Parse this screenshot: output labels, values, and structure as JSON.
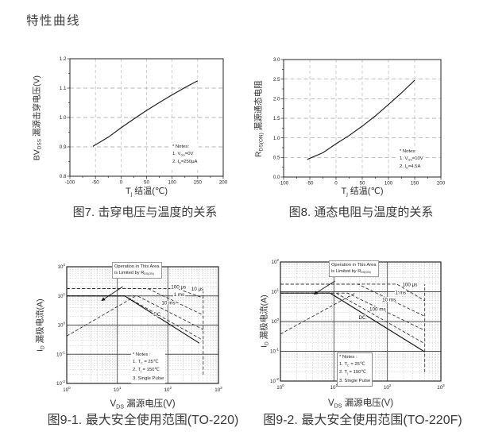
{
  "page": {
    "title": "特性曲线"
  },
  "colors": {
    "ink": "#1a1a1a",
    "grid_minor": "#b5b5b5",
    "grid_major": "#555555",
    "text": "#3a3a3a"
  },
  "chart_data": [
    {
      "type": "line",
      "caption": "图7. 击穿电压与温度的关系",
      "xlabel": "T_{j} 结温(℃)",
      "ylabel": "BV_{DSS} 漏源击穿电压(V)",
      "xlim": [
        -100,
        200
      ],
      "ylim": [
        0.8,
        1.2
      ],
      "xticks": [
        -100,
        -50,
        0,
        50,
        100,
        150,
        200
      ],
      "yticks": [
        "0.8",
        "0.9",
        "1.0",
        "1.1",
        "1.2"
      ],
      "grid": "dashed",
      "legend_position": "none",
      "notes": [
        "* Notes:",
        "1. V_{GS}=0V",
        "2. I_{D}=250μA"
      ],
      "series": [
        {
          "name": "BVDSS-vs-Tj",
          "style": "solid",
          "x": [
            -55,
            -25,
            0,
            25,
            50,
            75,
            100,
            125,
            150
          ],
          "y": [
            0.902,
            0.933,
            0.965,
            0.995,
            1.024,
            1.051,
            1.077,
            1.102,
            1.125
          ]
        }
      ]
    },
    {
      "type": "line",
      "caption": "图8. 通态电阻与温度的关系",
      "xlabel": "T_{j} 结温(℃)",
      "ylabel": "R_{DS(ON)} 漏源通态电阻",
      "xlim": [
        -100,
        200
      ],
      "ylim": [
        0.0,
        3.0
      ],
      "xticks": [
        -100,
        -50,
        0,
        50,
        100,
        150,
        200
      ],
      "yticks": [
        "0.0",
        "0.5",
        "1.0",
        "1.5",
        "2.0",
        "2.5",
        "3.0"
      ],
      "grid": "dashed",
      "legend_position": "none",
      "notes": [
        "* Notes:",
        "1. V_{GS}=10V",
        "2. I_{D}=4.5A"
      ],
      "series": [
        {
          "name": "RDSON-vs-Tj",
          "style": "solid",
          "x": [
            -55,
            -25,
            0,
            25,
            50,
            75,
            100,
            125,
            150
          ],
          "y": [
            0.45,
            0.62,
            0.85,
            1.06,
            1.3,
            1.56,
            1.85,
            2.15,
            2.47
          ]
        }
      ]
    },
    {
      "type": "loglog",
      "caption": "图9-1. 最大安全使用范围(TO-220)",
      "xlabel": "V_{DS} 漏源电压(V)",
      "ylabel": "I_{D} 漏极电流(A)",
      "xlim": [
        1,
        1000
      ],
      "ylim": [
        0.01,
        100
      ],
      "xticks": [
        "10^{0}",
        "10^{1}",
        "10^{2}",
        "10^{3}"
      ],
      "yticks": [
        "10^{-2}",
        "10^{-1}",
        "10^{0}",
        "10^{1}",
        "10^{2}"
      ],
      "annotation": [
        "Operation in This Area",
        "is Limited by R_{DS(ON)}"
      ],
      "notes": [
        "* Notes :",
        "1. T_{C} = 25℃",
        "2. T_{j} = 150℃",
        "3. Single Pulse"
      ],
      "series": [
        {
          "name": "rdson-limit",
          "style": "dashed",
          "points": [
            [
              1,
              0.42
            ],
            [
              22,
              9.5
            ]
          ]
        },
        {
          "name": "10us",
          "label": "10 μs",
          "style": "dashed",
          "points": [
            [
              1,
              18
            ],
            [
              150,
              18
            ],
            [
              500,
              8.5
            ]
          ],
          "label_at": [
            290,
            14
          ]
        },
        {
          "name": "100us",
          "label": "100 μs",
          "style": "dashed",
          "points": [
            [
              1,
              18
            ],
            [
              40,
              18
            ],
            [
              500,
              2.2
            ]
          ],
          "label_at": [
            115,
            16
          ]
        },
        {
          "name": "1ms",
          "label": "1 ms",
          "style": "dashed",
          "points": [
            [
              1,
              10
            ],
            [
              25,
              10
            ],
            [
              500,
              0.7
            ]
          ],
          "label_at": [
            130,
            9
          ]
        },
        {
          "name": "10ms",
          "label": "10 ms",
          "style": "dashed",
          "points": [
            [
              1,
              10
            ],
            [
              14,
              10
            ],
            [
              500,
              0.3
            ]
          ],
          "label_at": [
            75,
            4.6
          ]
        },
        {
          "name": "DC",
          "label": "DC",
          "style": "solid",
          "points": [
            [
              1,
              10
            ],
            [
              14,
              10
            ],
            [
              420,
              0.24
            ]
          ],
          "label_at": [
            52,
            1.9
          ]
        },
        {
          "name": "bvdss-500v-line",
          "style": "dashed",
          "points": [
            [
              500,
              0.02
            ],
            [
              500,
              18
            ]
          ]
        }
      ]
    },
    {
      "type": "loglog",
      "caption": "图9-2. 最大安全使用范围(TO-220F)",
      "xlabel": "V_{DS} 漏源电压(V)",
      "ylabel": "I_{D} 漏极电流(A)",
      "xlim": [
        1,
        1000
      ],
      "ylim": [
        0.01,
        100
      ],
      "xticks": [
        "10^{0}",
        "10^{1}",
        "10^{2}",
        "10^{3}"
      ],
      "yticks": [
        "10^{-2}",
        "10^{-1}",
        "10^{0}",
        "10^{1}",
        "10^{2}"
      ],
      "annotation": [
        "Operation in This Area",
        "is Limited by R_{DS(ON)}"
      ],
      "notes": [
        "* Notes :",
        "1. T_{C} = 25℃",
        "2. T_{j} = 150℃",
        "3. Single Pulse"
      ],
      "series": [
        {
          "name": "rdson-limit",
          "style": "dashed",
          "points": [
            [
              1,
              0.38
            ],
            [
              25,
              9
            ]
          ]
        },
        {
          "name": "100us",
          "label": "100 μs",
          "style": "dashed",
          "points": [
            [
              1,
              18
            ],
            [
              150,
              18
            ],
            [
              500,
              5
            ]
          ],
          "label_at": [
            190,
            14
          ]
        },
        {
          "name": "1ms",
          "label": "1 ms",
          "style": "dashed",
          "points": [
            [
              1,
              18
            ],
            [
              28,
              18
            ],
            [
              500,
              1.5
            ]
          ],
          "label_at": [
            140,
            7.5
          ]
        },
        {
          "name": "10ms",
          "label": "10 ms",
          "style": "dashed",
          "points": [
            [
              1,
              9
            ],
            [
              18,
              9
            ],
            [
              500,
              0.5
            ]
          ],
          "label_at": [
            80,
            4.4
          ]
        },
        {
          "name": "100ms",
          "label": "100 ms",
          "style": "dashed",
          "points": [
            [
              1,
              9
            ],
            [
              11,
              9
            ],
            [
              500,
              0.18
            ]
          ],
          "label_at": [
            46,
            2.1
          ]
        },
        {
          "name": "DC",
          "label": "DC",
          "style": "solid",
          "points": [
            [
              1,
              9
            ],
            [
              8.5,
              9
            ],
            [
              500,
              0.095
            ]
          ],
          "label_at": [
            29,
            1.1
          ]
        },
        {
          "name": "bvdss-500v-line",
          "style": "dashed",
          "points": [
            [
              500,
              0.02
            ],
            [
              500,
              18
            ]
          ]
        }
      ]
    }
  ]
}
